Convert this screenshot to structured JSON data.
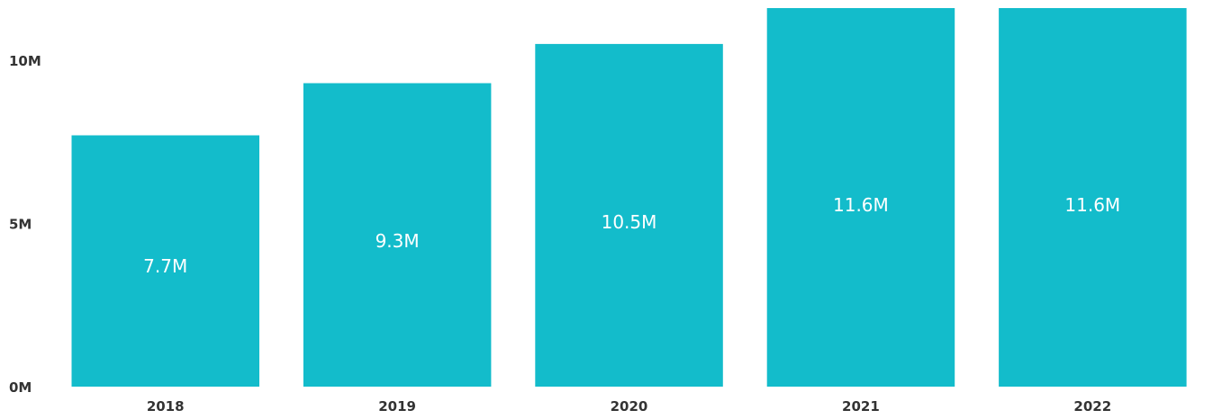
{
  "chart_data": {
    "type": "bar",
    "categories": [
      "2018",
      "2019",
      "2020",
      "2021",
      "2022"
    ],
    "values": [
      7.7,
      9.3,
      10.5,
      11.6,
      11.6
    ],
    "data_labels": [
      "7.7M",
      "9.3M",
      "10.5M",
      "11.6M",
      "11.6M"
    ],
    "y_ticks": [
      {
        "value": 0,
        "label": "0M"
      },
      {
        "value": 5,
        "label": "5M"
      },
      {
        "value": 10,
        "label": "10M"
      }
    ],
    "ylim": [
      0,
      11.6
    ],
    "title": "",
    "xlabel": "",
    "ylabel": "",
    "grid": false,
    "legend": "none",
    "colors": {
      "bar": "#13bccb",
      "data_label": "#ffffff",
      "axis_text": "#333333"
    }
  }
}
